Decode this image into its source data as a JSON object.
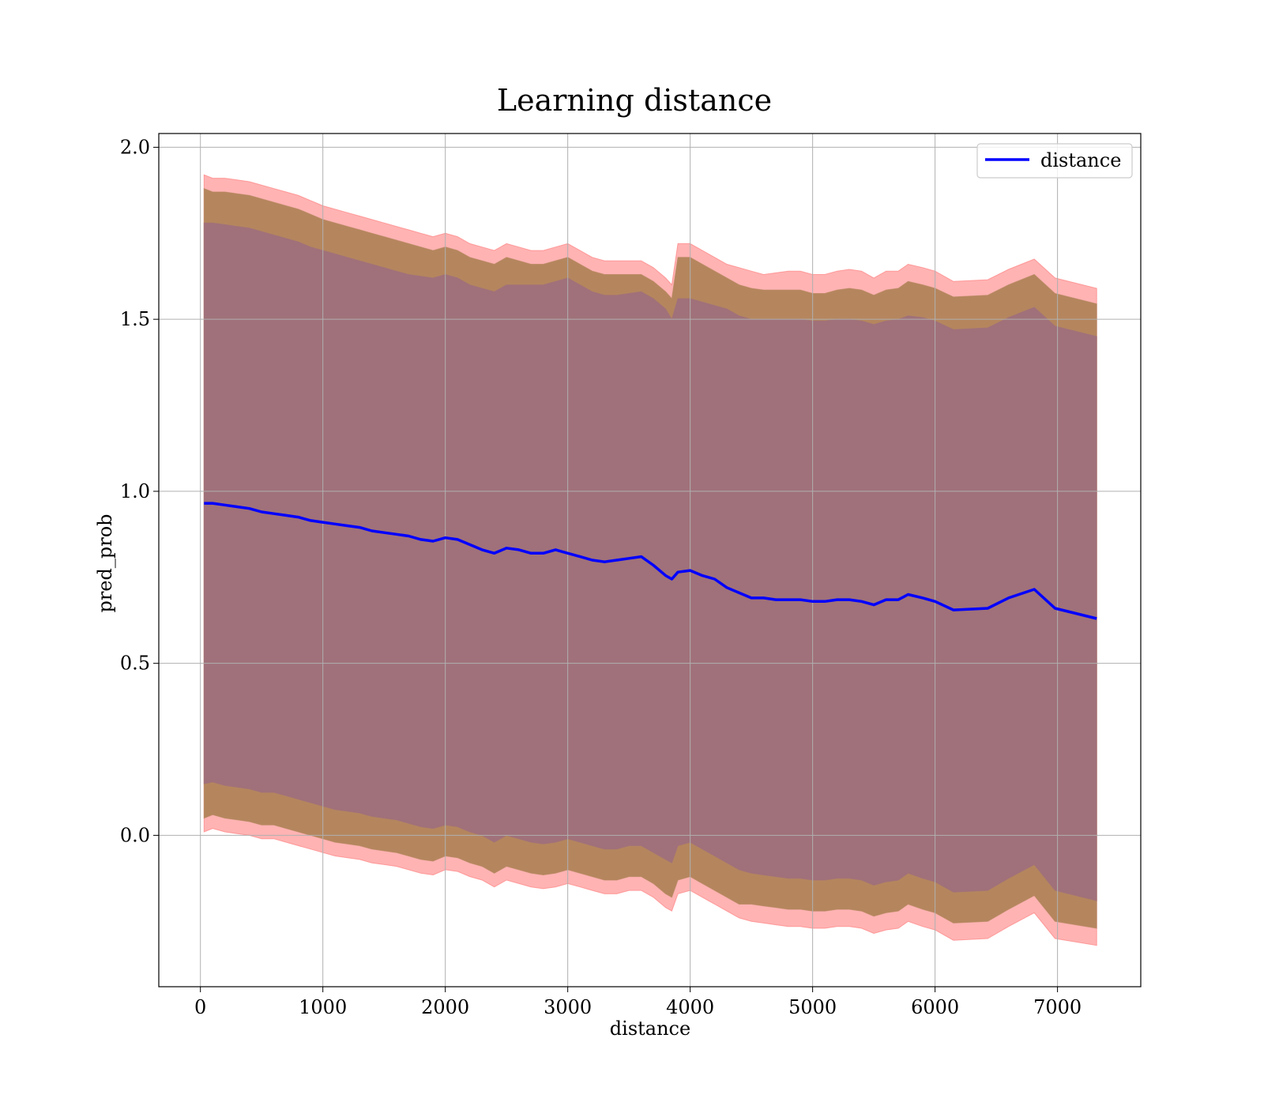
{
  "chart_data": {
    "type": "area",
    "title": "Learning distance",
    "xlabel": "distance",
    "ylabel": "pred_prob",
    "xlim": [
      -340,
      7680
    ],
    "ylim": [
      -0.44,
      2.04
    ],
    "xticks": [
      0,
      1000,
      2000,
      3000,
      4000,
      5000,
      6000,
      7000
    ],
    "yticks": [
      0.0,
      0.5,
      1.0,
      1.5,
      2.0
    ],
    "grid": true,
    "legend": {
      "location": "upper right",
      "entries": [
        "distance"
      ]
    },
    "colors": {
      "line": "#0000ff",
      "band_outer": "#ff8080",
      "band_middle": "#b5865e",
      "band_inner": "#a0717a",
      "grid": "#b0b0b0"
    },
    "series": [
      {
        "name": "distance",
        "x": [
          30,
          100,
          200,
          300,
          400,
          500,
          600,
          700,
          800,
          900,
          1000,
          1100,
          1200,
          1300,
          1400,
          1500,
          1600,
          1700,
          1800,
          1900,
          2000,
          2100,
          2200,
          2300,
          2400,
          2500,
          2600,
          2700,
          2800,
          2900,
          3000,
          3100,
          3200,
          3300,
          3400,
          3500,
          3600,
          3700,
          3800,
          3850,
          3900,
          4000,
          4100,
          4200,
          4300,
          4400,
          4500,
          4600,
          4700,
          4800,
          4900,
          5000,
          5100,
          5200,
          5300,
          5400,
          5500,
          5600,
          5700,
          5780,
          5900,
          6000,
          6150,
          6430,
          6600,
          6810,
          6980,
          7320
        ],
        "y": [
          0.965,
          0.965,
          0.96,
          0.955,
          0.95,
          0.94,
          0.935,
          0.93,
          0.925,
          0.915,
          0.91,
          0.905,
          0.9,
          0.895,
          0.885,
          0.88,
          0.875,
          0.87,
          0.86,
          0.855,
          0.865,
          0.86,
          0.845,
          0.83,
          0.82,
          0.835,
          0.83,
          0.82,
          0.82,
          0.83,
          0.82,
          0.81,
          0.8,
          0.795,
          0.8,
          0.805,
          0.81,
          0.785,
          0.755,
          0.745,
          0.765,
          0.77,
          0.755,
          0.745,
          0.72,
          0.705,
          0.69,
          0.69,
          0.685,
          0.685,
          0.685,
          0.68,
          0.68,
          0.685,
          0.685,
          0.68,
          0.67,
          0.685,
          0.685,
          0.7,
          0.69,
          0.68,
          0.655,
          0.66,
          0.69,
          0.715,
          0.66,
          0.63
        ]
      }
    ],
    "bands": [
      {
        "name": "outer",
        "upper": [
          1.92,
          1.91,
          1.91,
          1.905,
          1.9,
          1.89,
          1.88,
          1.87,
          1.86,
          1.845,
          1.83,
          1.82,
          1.81,
          1.8,
          1.79,
          1.78,
          1.77,
          1.76,
          1.75,
          1.74,
          1.75,
          1.74,
          1.72,
          1.71,
          1.7,
          1.72,
          1.71,
          1.7,
          1.7,
          1.71,
          1.72,
          1.7,
          1.68,
          1.67,
          1.67,
          1.67,
          1.67,
          1.65,
          1.62,
          1.6,
          1.72,
          1.72,
          1.7,
          1.68,
          1.66,
          1.65,
          1.64,
          1.63,
          1.635,
          1.64,
          1.64,
          1.63,
          1.63,
          1.64,
          1.645,
          1.64,
          1.62,
          1.64,
          1.64,
          1.66,
          1.65,
          1.64,
          1.61,
          1.615,
          1.645,
          1.675,
          1.62,
          1.59
        ],
        "lower": [
          0.01,
          0.02,
          0.01,
          0.005,
          0.0,
          -0.01,
          -0.01,
          -0.02,
          -0.03,
          -0.04,
          -0.05,
          -0.06,
          -0.065,
          -0.07,
          -0.08,
          -0.085,
          -0.09,
          -0.1,
          -0.11,
          -0.115,
          -0.1,
          -0.105,
          -0.12,
          -0.13,
          -0.15,
          -0.13,
          -0.14,
          -0.15,
          -0.155,
          -0.15,
          -0.14,
          -0.15,
          -0.16,
          -0.17,
          -0.17,
          -0.16,
          -0.16,
          -0.18,
          -0.21,
          -0.22,
          -0.17,
          -0.16,
          -0.18,
          -0.2,
          -0.22,
          -0.24,
          -0.25,
          -0.255,
          -0.26,
          -0.265,
          -0.265,
          -0.27,
          -0.27,
          -0.265,
          -0.265,
          -0.27,
          -0.285,
          -0.275,
          -0.27,
          -0.25,
          -0.265,
          -0.275,
          -0.305,
          -0.3,
          -0.265,
          -0.225,
          -0.3,
          -0.32
        ]
      },
      {
        "name": "middle",
        "upper": [
          1.88,
          1.87,
          1.87,
          1.865,
          1.86,
          1.85,
          1.84,
          1.83,
          1.82,
          1.805,
          1.79,
          1.78,
          1.77,
          1.76,
          1.75,
          1.74,
          1.73,
          1.72,
          1.71,
          1.7,
          1.71,
          1.7,
          1.68,
          1.67,
          1.66,
          1.68,
          1.67,
          1.66,
          1.66,
          1.67,
          1.68,
          1.66,
          1.64,
          1.63,
          1.63,
          1.63,
          1.63,
          1.61,
          1.58,
          1.56,
          1.68,
          1.68,
          1.66,
          1.64,
          1.62,
          1.6,
          1.59,
          1.585,
          1.585,
          1.585,
          1.585,
          1.575,
          1.575,
          1.585,
          1.59,
          1.585,
          1.57,
          1.585,
          1.59,
          1.61,
          1.6,
          1.59,
          1.565,
          1.57,
          1.6,
          1.63,
          1.575,
          1.545
        ],
        "lower": [
          0.05,
          0.06,
          0.05,
          0.045,
          0.04,
          0.03,
          0.03,
          0.02,
          0.01,
          0.0,
          -0.01,
          -0.02,
          -0.025,
          -0.03,
          -0.04,
          -0.045,
          -0.05,
          -0.06,
          -0.07,
          -0.075,
          -0.06,
          -0.065,
          -0.08,
          -0.09,
          -0.11,
          -0.09,
          -0.1,
          -0.11,
          -0.115,
          -0.11,
          -0.1,
          -0.11,
          -0.12,
          -0.13,
          -0.13,
          -0.12,
          -0.12,
          -0.14,
          -0.17,
          -0.18,
          -0.13,
          -0.12,
          -0.14,
          -0.16,
          -0.18,
          -0.2,
          -0.2,
          -0.205,
          -0.21,
          -0.215,
          -0.215,
          -0.22,
          -0.22,
          -0.215,
          -0.215,
          -0.22,
          -0.235,
          -0.225,
          -0.22,
          -0.2,
          -0.215,
          -0.225,
          -0.255,
          -0.25,
          -0.215,
          -0.175,
          -0.25,
          -0.27
        ]
      },
      {
        "name": "inner",
        "upper": [
          1.78,
          1.78,
          1.775,
          1.77,
          1.765,
          1.755,
          1.745,
          1.735,
          1.725,
          1.71,
          1.7,
          1.69,
          1.68,
          1.67,
          1.66,
          1.65,
          1.64,
          1.63,
          1.625,
          1.62,
          1.63,
          1.62,
          1.6,
          1.59,
          1.58,
          1.6,
          1.6,
          1.6,
          1.6,
          1.61,
          1.62,
          1.6,
          1.58,
          1.57,
          1.57,
          1.575,
          1.58,
          1.56,
          1.53,
          1.5,
          1.56,
          1.56,
          1.55,
          1.54,
          1.53,
          1.51,
          1.5,
          1.5,
          1.5,
          1.5,
          1.5,
          1.495,
          1.495,
          1.5,
          1.5,
          1.495,
          1.485,
          1.495,
          1.5,
          1.51,
          1.505,
          1.495,
          1.47,
          1.475,
          1.505,
          1.535,
          1.48,
          1.45
        ],
        "lower": [
          0.15,
          0.155,
          0.145,
          0.14,
          0.135,
          0.125,
          0.125,
          0.115,
          0.105,
          0.095,
          0.085,
          0.075,
          0.07,
          0.065,
          0.055,
          0.05,
          0.045,
          0.035,
          0.025,
          0.02,
          0.03,
          0.025,
          0.01,
          0.0,
          -0.02,
          0.0,
          -0.01,
          -0.02,
          -0.025,
          -0.02,
          -0.01,
          -0.02,
          -0.03,
          -0.04,
          -0.04,
          -0.03,
          -0.03,
          -0.05,
          -0.07,
          -0.08,
          -0.03,
          -0.02,
          -0.04,
          -0.06,
          -0.08,
          -0.1,
          -0.11,
          -0.115,
          -0.12,
          -0.125,
          -0.125,
          -0.13,
          -0.13,
          -0.125,
          -0.125,
          -0.13,
          -0.145,
          -0.135,
          -0.13,
          -0.11,
          -0.125,
          -0.135,
          -0.165,
          -0.16,
          -0.125,
          -0.085,
          -0.16,
          -0.19
        ]
      }
    ]
  }
}
